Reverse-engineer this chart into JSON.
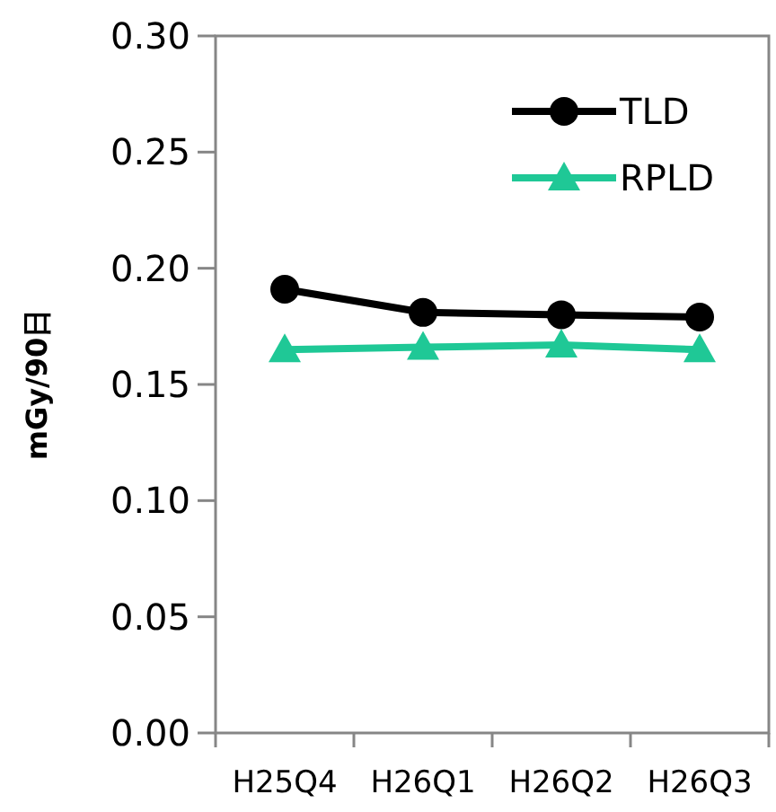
{
  "chart_data": {
    "type": "line",
    "ylabel": "mGy/90日",
    "categories": [
      "H25Q4",
      "H26Q1",
      "H26Q2",
      "H26Q3"
    ],
    "series": [
      {
        "name": "TLD",
        "color": "#000000",
        "marker": "circle",
        "values": [
          0.191,
          0.181,
          0.18,
          0.179
        ]
      },
      {
        "name": "RPLD",
        "color": "#1fc896",
        "marker": "triangle",
        "values": [
          0.165,
          0.166,
          0.167,
          0.165
        ]
      }
    ],
    "ylim": [
      0,
      0.3
    ],
    "yticks": [
      {
        "value": 0,
        "label": "0.00"
      },
      {
        "value": 0.05,
        "label": "0.05"
      },
      {
        "value": 0.1,
        "label": "0.10"
      },
      {
        "value": 0.15,
        "label": "0.15"
      },
      {
        "value": 0.2,
        "label": "0.20"
      },
      {
        "value": 0.25,
        "label": "0.25"
      },
      {
        "value": 0.3,
        "label": "0.30"
      }
    ],
    "grid": false,
    "legend": "top right"
  }
}
